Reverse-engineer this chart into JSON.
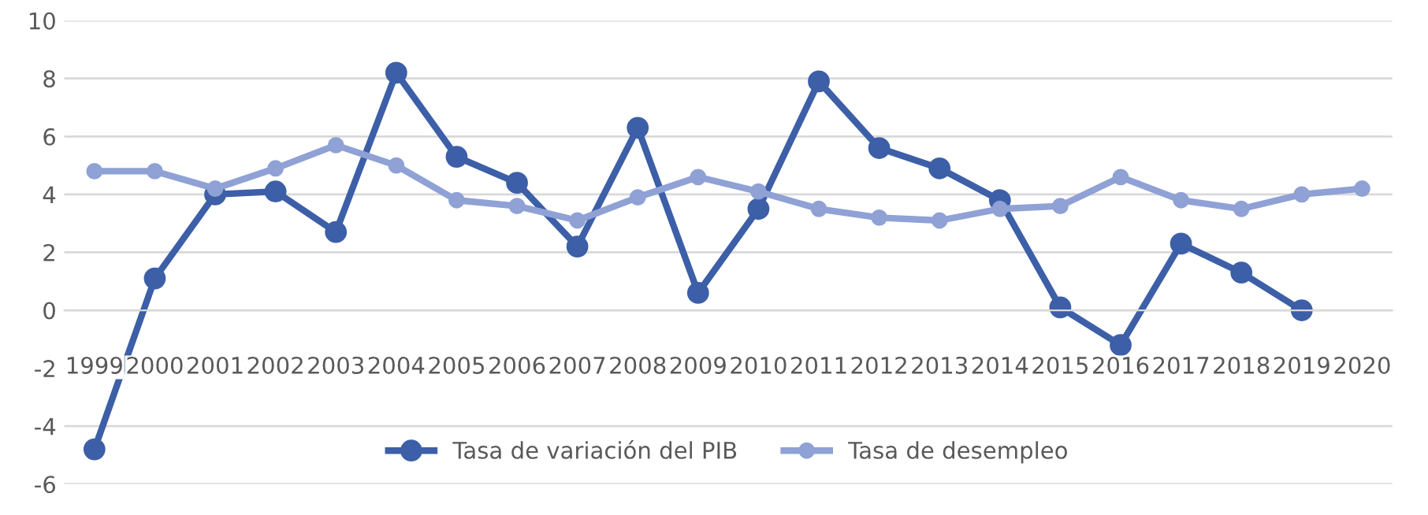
{
  "chart_data": {
    "type": "line",
    "categories": [
      "1999",
      "2000",
      "2001",
      "2002",
      "2003",
      "2004",
      "2005",
      "2006",
      "2007",
      "2008",
      "2009",
      "2010",
      "2011",
      "2012",
      "2013",
      "2014",
      "2015",
      "2016",
      "2017",
      "2018",
      "2019",
      "2020"
    ],
    "series": [
      {
        "name": "Tasa de variación del PIB",
        "color": "#3d5fa8",
        "values": [
          -4.8,
          1.1,
          4.0,
          4.1,
          2.7,
          8.2,
          5.3,
          4.4,
          2.2,
          6.3,
          0.6,
          3.5,
          7.9,
          5.6,
          4.9,
          3.8,
          0.1,
          -1.2,
          2.3,
          1.3,
          0.0,
          null
        ]
      },
      {
        "name": "Tasa de desempleo",
        "color": "#8fa1d5",
        "values": [
          4.8,
          4.8,
          4.2,
          4.9,
          5.7,
          5.0,
          3.8,
          3.6,
          3.1,
          3.9,
          4.6,
          4.1,
          3.5,
          3.2,
          3.1,
          3.5,
          3.6,
          4.6,
          3.8,
          3.5,
          4.0,
          4.2
        ]
      }
    ],
    "ylim": [
      -6,
      10
    ],
    "yticks": [
      -6,
      -4,
      -2,
      0,
      2,
      4,
      6,
      8,
      10
    ],
    "grid": "y",
    "legend": "bottom",
    "marker": "circle",
    "line_style": "solid"
  }
}
